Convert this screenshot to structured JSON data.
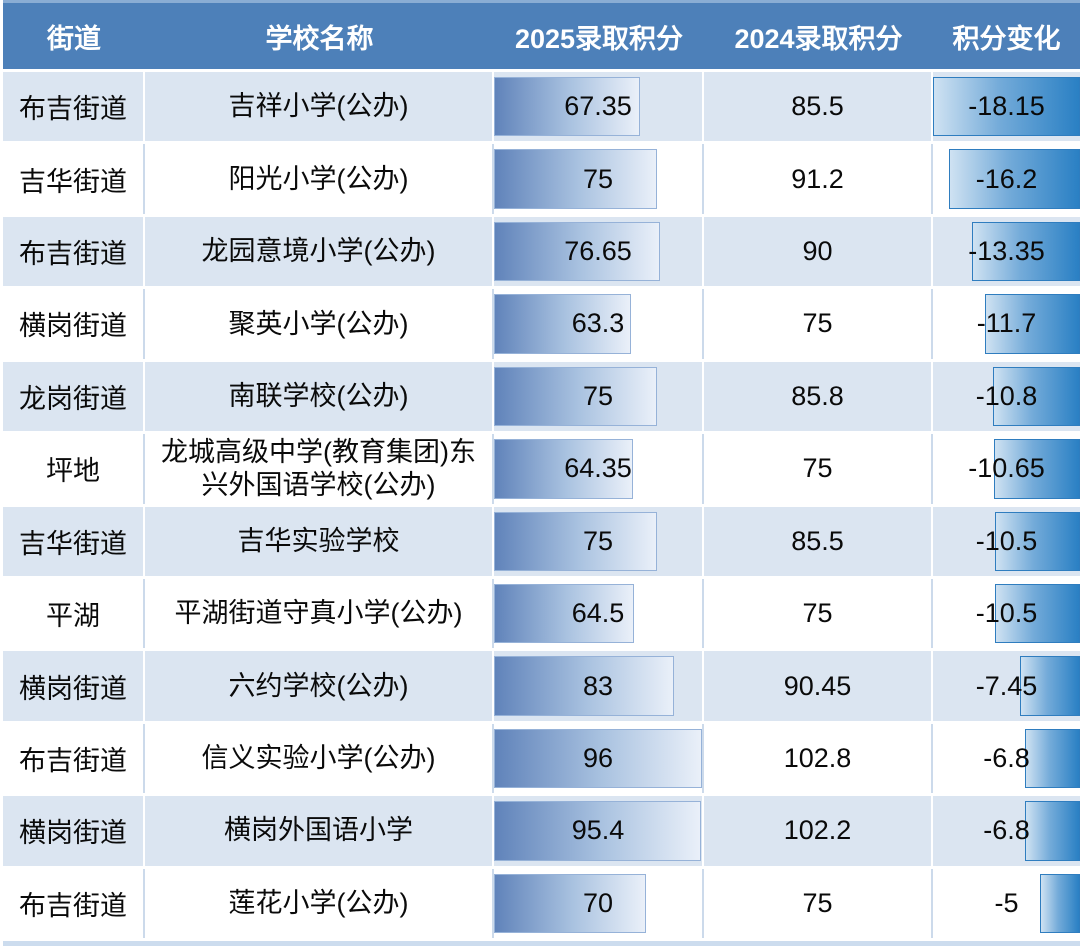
{
  "chart_data": {
    "type": "table",
    "title": "",
    "columns": [
      "街道",
      "学校名称",
      "2025录取积分",
      "2024录取积分",
      "积分变化"
    ],
    "rows": [
      {
        "district": "布吉街道",
        "school": "吉祥小学(公办)",
        "score2025": 67.35,
        "score2024": 85.5,
        "change": -18.15
      },
      {
        "district": "吉华街道",
        "school": "阳光小学(公办)",
        "score2025": 75,
        "score2024": 91.2,
        "change": -16.2
      },
      {
        "district": "布吉街道",
        "school": "龙园意境小学(公办)",
        "score2025": 76.65,
        "score2024": 90,
        "change": -13.35
      },
      {
        "district": "横岗街道",
        "school": "聚英小学(公办)",
        "score2025": 63.3,
        "score2024": 75,
        "change": -11.7
      },
      {
        "district": "龙岗街道",
        "school": "南联学校(公办)",
        "score2025": 75,
        "score2024": 85.8,
        "change": -10.8
      },
      {
        "district": "坪地",
        "school": "龙城高级中学(教育集团)东兴外国语学校(公办)",
        "score2025": 64.35,
        "score2024": 75,
        "change": -10.65
      },
      {
        "district": "吉华街道",
        "school": "吉华实验学校",
        "score2025": 75,
        "score2024": 85.5,
        "change": -10.5
      },
      {
        "district": "平湖",
        "school": "平湖街道守真小学(公办)",
        "score2025": 64.5,
        "score2024": 75,
        "change": -10.5
      },
      {
        "district": "横岗街道",
        "school": "六约学校(公办)",
        "score2025": 83,
        "score2024": 90.45,
        "change": -7.45
      },
      {
        "district": "布吉街道",
        "school": "信义实验小学(公办)",
        "score2025": 96,
        "score2024": 102.8,
        "change": -6.8
      },
      {
        "district": "横岗街道",
        "school": "横岗外国语小学",
        "score2025": 95.4,
        "score2024": 102.2,
        "change": -6.8
      },
      {
        "district": "布吉街道",
        "school": "莲花小学(公办)",
        "score2025": 70,
        "score2024": 75,
        "change": -5
      }
    ],
    "databars": {
      "score2025": {
        "anchor": "left",
        "scale_min": 0,
        "scale_max": 96
      },
      "change": {
        "anchor": "right",
        "scale_abs_max": 18.15
      }
    },
    "layout": {
      "stripe_pattern": "alternating",
      "first_row_shaded": true
    }
  },
  "colors": {
    "header_bg": "#4d80b9",
    "header_text": "#ffffff",
    "top_strip": "#8aadd4",
    "row_shaded": "#dbe5f1",
    "row_plain": "#ffffff",
    "divider_on_plain": "#ccdaeb",
    "bottom_strip": "#ccdcee",
    "bar2025_gradient_start": "#6083ba",
    "bar2025_gradient_mid": "#a9c2e0",
    "bar2025_gradient_end": "#eaf0f9",
    "bar_change_gradient_start": "#cfe2f2",
    "bar_change_gradient_mid": "#74abd9",
    "bar_change_gradient_end": "#2a80c4",
    "cell_text": "#0a0a0a"
  }
}
